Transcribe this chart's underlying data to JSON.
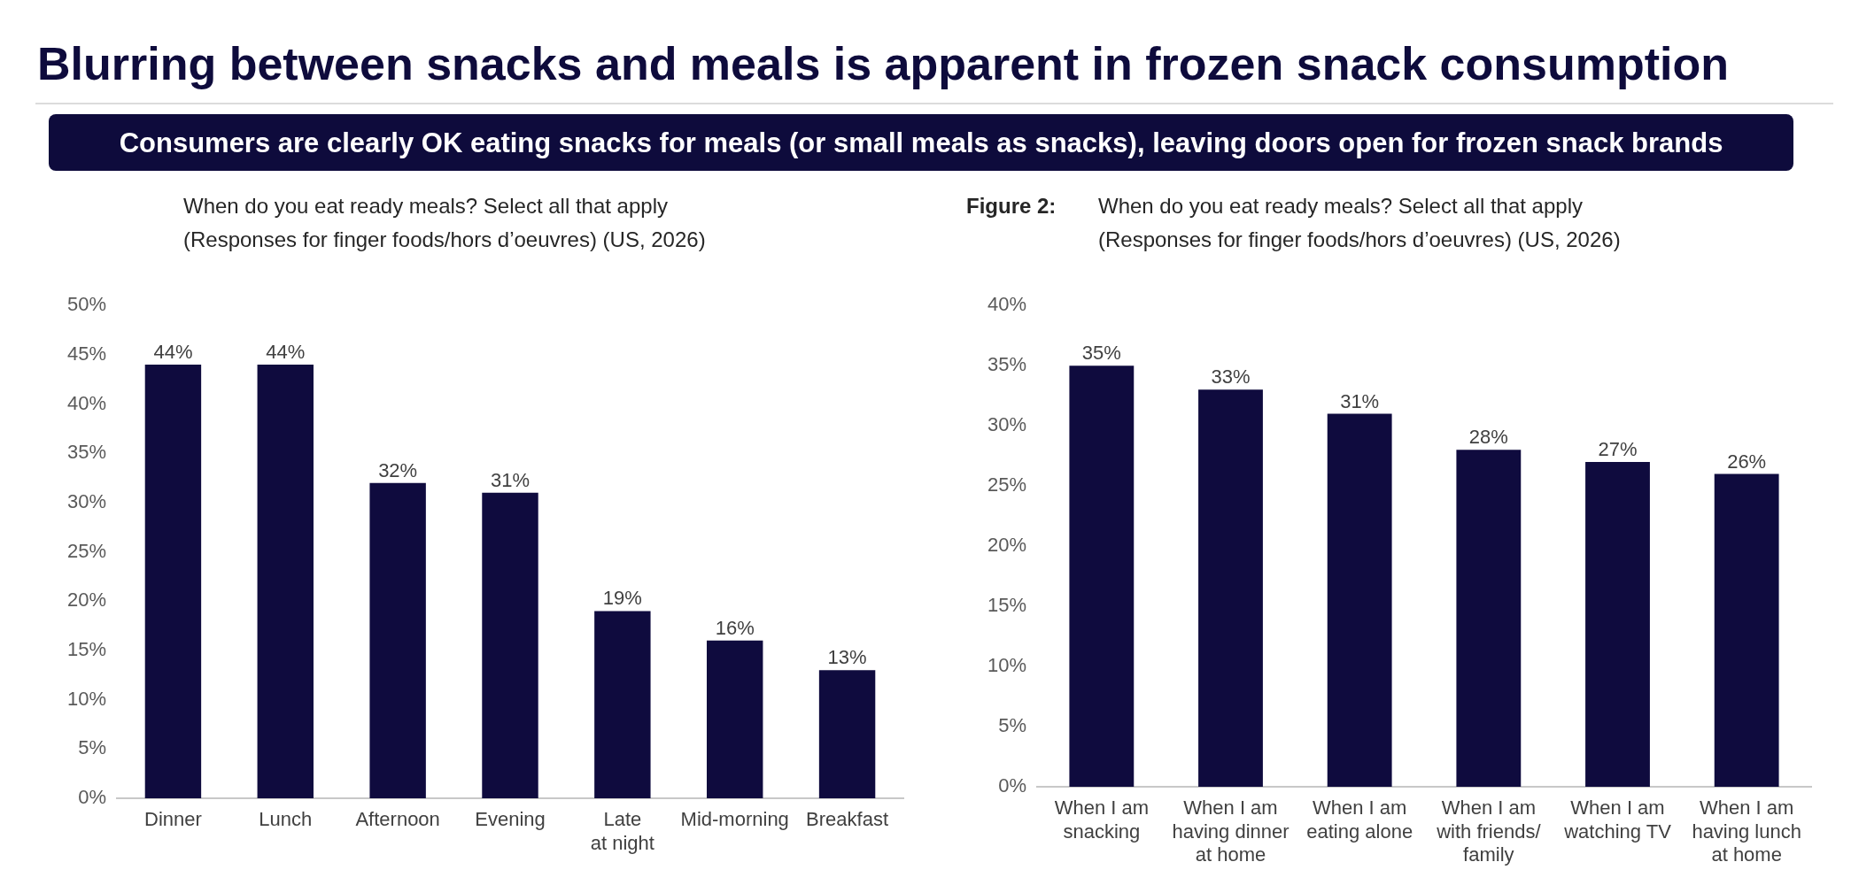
{
  "chart_data": [
    {
      "type": "other",
      "title": "Blurring between snacks and meals is apparent in frozen snack consumption",
      "subtitle": "Consumers are clearly OK eating snacks for meals (or small meals as snacks), leaving doors open for frozen snack brands"
    },
    {
      "type": "bar",
      "title": "When do you eat ready meals? Select all that apply",
      "subtitle": "(Responses for finger foods/hors d’oeuvres) (US, 2026)",
      "categories": [
        "Dinner",
        "Lunch",
        "Afternoon",
        "Evening",
        "Late\nat night",
        "Mid-morning",
        "Breakfast"
      ],
      "values": [
        44,
        44,
        32,
        31,
        19,
        16,
        13
      ],
      "value_labels": [
        "44%",
        "44%",
        "32%",
        "31%",
        "19%",
        "16%",
        "13%"
      ],
      "color": "#0f0b3e",
      "ylim": [
        0,
        50
      ],
      "yticks": [
        {
          "value": 0,
          "label": "0%"
        },
        {
          "value": 5,
          "label": "5%"
        },
        {
          "value": 10,
          "label": "10%"
        },
        {
          "value": 15,
          "label": "15%"
        },
        {
          "value": 20,
          "label": "20%"
        },
        {
          "value": 25,
          "label": "25%"
        },
        {
          "value": 30,
          "label": "30%"
        },
        {
          "value": 35,
          "label": "35%"
        },
        {
          "value": 40,
          "label": "40%"
        },
        {
          "value": 45,
          "label": "45%"
        },
        {
          "value": 50,
          "label": "50%"
        }
      ],
      "grid": false,
      "legend": false
    },
    {
      "type": "bar",
      "title": "When do you eat ready meals? Select all that apply",
      "subtitle": "(Responses for finger foods/hors d’oeuvres) (US, 2026)",
      "annotations": [
        "Figure 2:"
      ],
      "categories": [
        "When I am\nsnacking",
        "When I am\nhaving dinner\nat home",
        "When I am\neating alone",
        "When I am\nwith friends/\nfamily",
        "When I am\nwatching TV",
        "When I am\nhaving lunch\nat home"
      ],
      "values": [
        35,
        33,
        31,
        28,
        27,
        26
      ],
      "value_labels": [
        "35%",
        "33%",
        "31%",
        "28%",
        "27%",
        "26%"
      ],
      "color": "#0f0b3e",
      "ylim": [
        0,
        40
      ],
      "yticks": [
        {
          "value": 0,
          "label": "0%"
        },
        {
          "value": 5,
          "label": "5%"
        },
        {
          "value": 10,
          "label": "10%"
        },
        {
          "value": 15,
          "label": "15%"
        },
        {
          "value": 20,
          "label": "20%"
        },
        {
          "value": 25,
          "label": "25%"
        },
        {
          "value": 30,
          "label": "30%"
        },
        {
          "value": 35,
          "label": "35%"
        },
        {
          "value": 40,
          "label": "40%"
        }
      ],
      "grid": false,
      "legend": false
    }
  ]
}
